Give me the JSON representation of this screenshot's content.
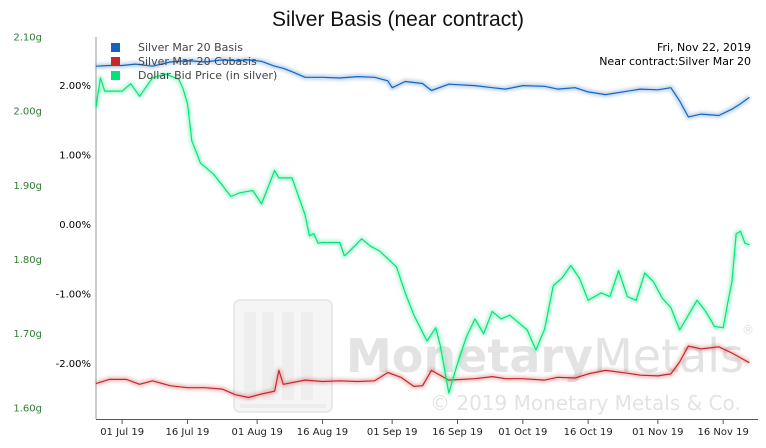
{
  "chart_data": {
    "type": "line",
    "title": "Silver Basis (near contract)",
    "date_label": "Fri, Nov 22, 2019",
    "contract_label": "Near contract:Silver Mar 20",
    "x_ticks": [
      "01 Jul 19",
      "16 Jul 19",
      "01 Aug 19",
      "16 Aug 19",
      "01 Sep 19",
      "16 Sep 19",
      "01 Oct 19",
      "16 Oct 19",
      "01 Nov 19",
      "16 Nov 19"
    ],
    "x_range": [
      "2019-06-25",
      "2019-11-24"
    ],
    "left_axis": {
      "ticks": [
        "2.10g",
        "2.00g",
        "1.90g",
        "1.80g",
        "1.70g",
        "1.60g"
      ],
      "range": [
        1.585,
        2.1
      ]
    },
    "right_axis": {
      "ticks": [
        "2.00%",
        "1.00%",
        "0.00%",
        "-1.00%",
        "-2.00%"
      ],
      "range": [
        -2.8,
        2.7
      ]
    },
    "grid": false,
    "legend_position": "top-left",
    "series": [
      {
        "name": "Silver Mar 20 Basis",
        "axis": "right",
        "color": "#1565c0",
        "points": [
          [
            "2019-06-25",
            2.28
          ],
          [
            "2019-06-28",
            2.29
          ],
          [
            "2019-07-01",
            2.29
          ],
          [
            "2019-07-04",
            2.31
          ],
          [
            "2019-07-08",
            2.28
          ],
          [
            "2019-07-12",
            2.34
          ],
          [
            "2019-07-16",
            2.36
          ],
          [
            "2019-07-20",
            2.34
          ],
          [
            "2019-07-24",
            2.37
          ],
          [
            "2019-07-27",
            2.36
          ],
          [
            "2019-07-30",
            2.37
          ],
          [
            "2019-08-02",
            2.35
          ],
          [
            "2019-08-05",
            2.28
          ],
          [
            "2019-08-07",
            2.25
          ],
          [
            "2019-08-09",
            2.2
          ],
          [
            "2019-08-12",
            2.12
          ],
          [
            "2019-08-16",
            2.12
          ],
          [
            "2019-08-20",
            2.11
          ],
          [
            "2019-08-24",
            2.13
          ],
          [
            "2019-08-28",
            2.12
          ],
          [
            "2019-08-31",
            2.07
          ],
          [
            "2019-09-01",
            1.97
          ],
          [
            "2019-09-04",
            2.06
          ],
          [
            "2019-09-08",
            2.03
          ],
          [
            "2019-09-10",
            1.93
          ],
          [
            "2019-09-14",
            2.02
          ],
          [
            "2019-09-20",
            2.0
          ],
          [
            "2019-09-24",
            1.97
          ],
          [
            "2019-09-27",
            1.95
          ],
          [
            "2019-10-01",
            2.0
          ],
          [
            "2019-10-06",
            1.99
          ],
          [
            "2019-10-09",
            1.95
          ],
          [
            "2019-10-13",
            1.97
          ],
          [
            "2019-10-16",
            1.91
          ],
          [
            "2019-10-20",
            1.87
          ],
          [
            "2019-10-25",
            1.92
          ],
          [
            "2019-10-28",
            1.95
          ],
          [
            "2019-11-01",
            1.94
          ],
          [
            "2019-11-04",
            1.97
          ],
          [
            "2019-11-06",
            1.78
          ],
          [
            "2019-11-08",
            1.55
          ],
          [
            "2019-11-11",
            1.59
          ],
          [
            "2019-11-15",
            1.57
          ],
          [
            "2019-11-18",
            1.66
          ],
          [
            "2019-11-20",
            1.74
          ],
          [
            "2019-11-22",
            1.83
          ]
        ]
      },
      {
        "name": "Silver Mar 20 Cobasis",
        "axis": "right",
        "color": "#c62828",
        "points": [
          [
            "2019-06-25",
            -2.29
          ],
          [
            "2019-06-28",
            -2.23
          ],
          [
            "2019-07-02",
            -2.23
          ],
          [
            "2019-07-05",
            -2.3
          ],
          [
            "2019-07-08",
            -2.25
          ],
          [
            "2019-07-12",
            -2.32
          ],
          [
            "2019-07-16",
            -2.35
          ],
          [
            "2019-07-20",
            -2.35
          ],
          [
            "2019-07-24",
            -2.37
          ],
          [
            "2019-07-27",
            -2.45
          ],
          [
            "2019-07-30",
            -2.49
          ],
          [
            "2019-08-02",
            -2.44
          ],
          [
            "2019-08-05",
            -2.4
          ],
          [
            "2019-08-06",
            -2.1
          ],
          [
            "2019-08-07",
            -2.3
          ],
          [
            "2019-08-12",
            -2.24
          ],
          [
            "2019-08-16",
            -2.26
          ],
          [
            "2019-08-20",
            -2.25
          ],
          [
            "2019-08-24",
            -2.26
          ],
          [
            "2019-08-28",
            -2.25
          ],
          [
            "2019-08-31",
            -2.13
          ],
          [
            "2019-09-03",
            -2.2
          ],
          [
            "2019-09-06",
            -2.33
          ],
          [
            "2019-09-08",
            -2.32
          ],
          [
            "2019-09-10",
            -2.1
          ],
          [
            "2019-09-14",
            -2.24
          ],
          [
            "2019-09-20",
            -2.22
          ],
          [
            "2019-09-24",
            -2.19
          ],
          [
            "2019-09-27",
            -2.22
          ],
          [
            "2019-10-01",
            -2.22
          ],
          [
            "2019-10-06",
            -2.24
          ],
          [
            "2019-10-09",
            -2.2
          ],
          [
            "2019-10-13",
            -2.21
          ],
          [
            "2019-10-16",
            -2.15
          ],
          [
            "2019-10-20",
            -2.1
          ],
          [
            "2019-10-25",
            -2.14
          ],
          [
            "2019-10-28",
            -2.17
          ],
          [
            "2019-11-01",
            -2.18
          ],
          [
            "2019-11-04",
            -2.15
          ],
          [
            "2019-11-06",
            -1.98
          ],
          [
            "2019-11-08",
            -1.75
          ],
          [
            "2019-11-11",
            -1.79
          ],
          [
            "2019-11-15",
            -1.76
          ],
          [
            "2019-11-18",
            -1.85
          ],
          [
            "2019-11-20",
            -1.92
          ],
          [
            "2019-11-22",
            -1.99
          ]
        ]
      },
      {
        "name": "Dollar Bid Price (in silver)",
        "axis": "left",
        "color": "#00e676",
        "points": [
          [
            "2019-06-25",
            2.005
          ],
          [
            "2019-06-26",
            2.045
          ],
          [
            "2019-06-27",
            2.027
          ],
          [
            "2019-07-01",
            2.027
          ],
          [
            "2019-07-03",
            2.037
          ],
          [
            "2019-07-05",
            2.02
          ],
          [
            "2019-07-08",
            2.045
          ],
          [
            "2019-07-11",
            2.05
          ],
          [
            "2019-07-14",
            2.043
          ],
          [
            "2019-07-15",
            2.03
          ],
          [
            "2019-07-16",
            2.01
          ],
          [
            "2019-07-17",
            1.96
          ],
          [
            "2019-07-19",
            1.93
          ],
          [
            "2019-07-22",
            1.915
          ],
          [
            "2019-07-26",
            1.885
          ],
          [
            "2019-07-28",
            1.89
          ],
          [
            "2019-07-31",
            1.893
          ],
          [
            "2019-08-02",
            1.875
          ],
          [
            "2019-08-05",
            1.92
          ],
          [
            "2019-08-06",
            1.91
          ],
          [
            "2019-08-09",
            1.91
          ],
          [
            "2019-08-12",
            1.86
          ],
          [
            "2019-08-13",
            1.832
          ],
          [
            "2019-08-14",
            1.835
          ],
          [
            "2019-08-15",
            1.822
          ],
          [
            "2019-08-16",
            1.823
          ],
          [
            "2019-08-20",
            1.823
          ],
          [
            "2019-08-21",
            1.805
          ],
          [
            "2019-08-22",
            1.81
          ],
          [
            "2019-08-25",
            1.828
          ],
          [
            "2019-08-27",
            1.818
          ],
          [
            "2019-08-29",
            1.812
          ],
          [
            "2019-09-02",
            1.79
          ],
          [
            "2019-09-04",
            1.755
          ],
          [
            "2019-09-06",
            1.725
          ],
          [
            "2019-09-09",
            1.69
          ],
          [
            "2019-09-11",
            1.708
          ],
          [
            "2019-09-12",
            1.685
          ],
          [
            "2019-09-14",
            1.62
          ],
          [
            "2019-09-16",
            1.66
          ],
          [
            "2019-09-18",
            1.695
          ],
          [
            "2019-09-20",
            1.72
          ],
          [
            "2019-09-22",
            1.7
          ],
          [
            "2019-09-24",
            1.73
          ],
          [
            "2019-09-26",
            1.72
          ],
          [
            "2019-09-28",
            1.725
          ],
          [
            "2019-10-02",
            1.705
          ],
          [
            "2019-10-04",
            1.678
          ],
          [
            "2019-10-06",
            1.706
          ],
          [
            "2019-10-08",
            1.765
          ],
          [
            "2019-10-10",
            1.775
          ],
          [
            "2019-10-12",
            1.792
          ],
          [
            "2019-10-14",
            1.775
          ],
          [
            "2019-10-16",
            1.745
          ],
          [
            "2019-10-19",
            1.755
          ],
          [
            "2019-10-21",
            1.75
          ],
          [
            "2019-10-23",
            1.785
          ],
          [
            "2019-10-25",
            1.75
          ],
          [
            "2019-10-27",
            1.745
          ],
          [
            "2019-10-29",
            1.782
          ],
          [
            "2019-10-31",
            1.77
          ],
          [
            "2019-11-02",
            1.748
          ],
          [
            "2019-11-04",
            1.735
          ],
          [
            "2019-11-06",
            1.705
          ],
          [
            "2019-11-08",
            1.725
          ],
          [
            "2019-11-10",
            1.745
          ],
          [
            "2019-11-12",
            1.73
          ],
          [
            "2019-11-14",
            1.71
          ],
          [
            "2019-11-16",
            1.708
          ],
          [
            "2019-11-17",
            1.74
          ],
          [
            "2019-11-18",
            1.77
          ],
          [
            "2019-11-19",
            1.835
          ],
          [
            "2019-11-20",
            1.838
          ],
          [
            "2019-11-21",
            1.822
          ],
          [
            "2019-11-22",
            1.82
          ]
        ]
      }
    ]
  },
  "watermark": {
    "brand_main": "Monetary",
    "brand_light": "Metals",
    "registered": "®",
    "copyright": "© 2019 Monetary Metals & Co."
  },
  "icons": {
    "watermark_logo": "monetary-metals-logo-icon"
  }
}
